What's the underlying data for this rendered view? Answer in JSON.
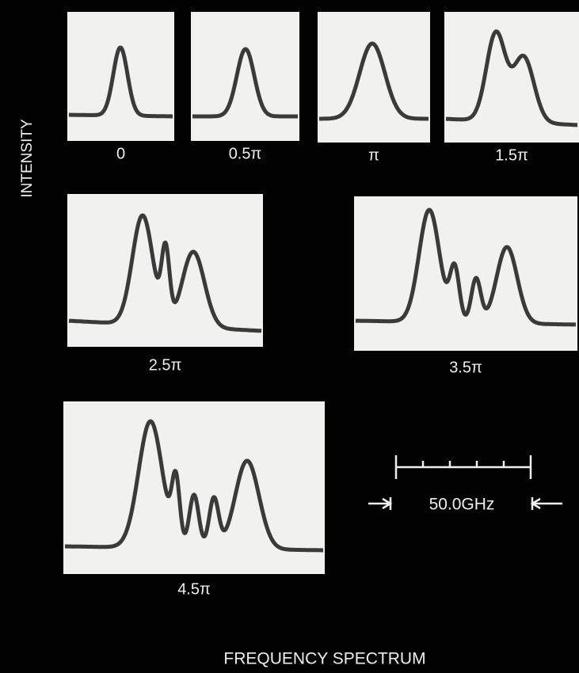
{
  "y_axis_label": "INTENSITY",
  "x_axis_label": "FREQUENCY SPECTRUM",
  "panels": [
    {
      "label": "0"
    },
    {
      "label": "0.5π"
    },
    {
      "label": "π"
    },
    {
      "label": "1.5π"
    },
    {
      "label": "2.5π"
    },
    {
      "label": "3.5π"
    },
    {
      "label": "4.5π"
    }
  ],
  "scale_bar": {
    "label": "50.0GHz"
  }
}
